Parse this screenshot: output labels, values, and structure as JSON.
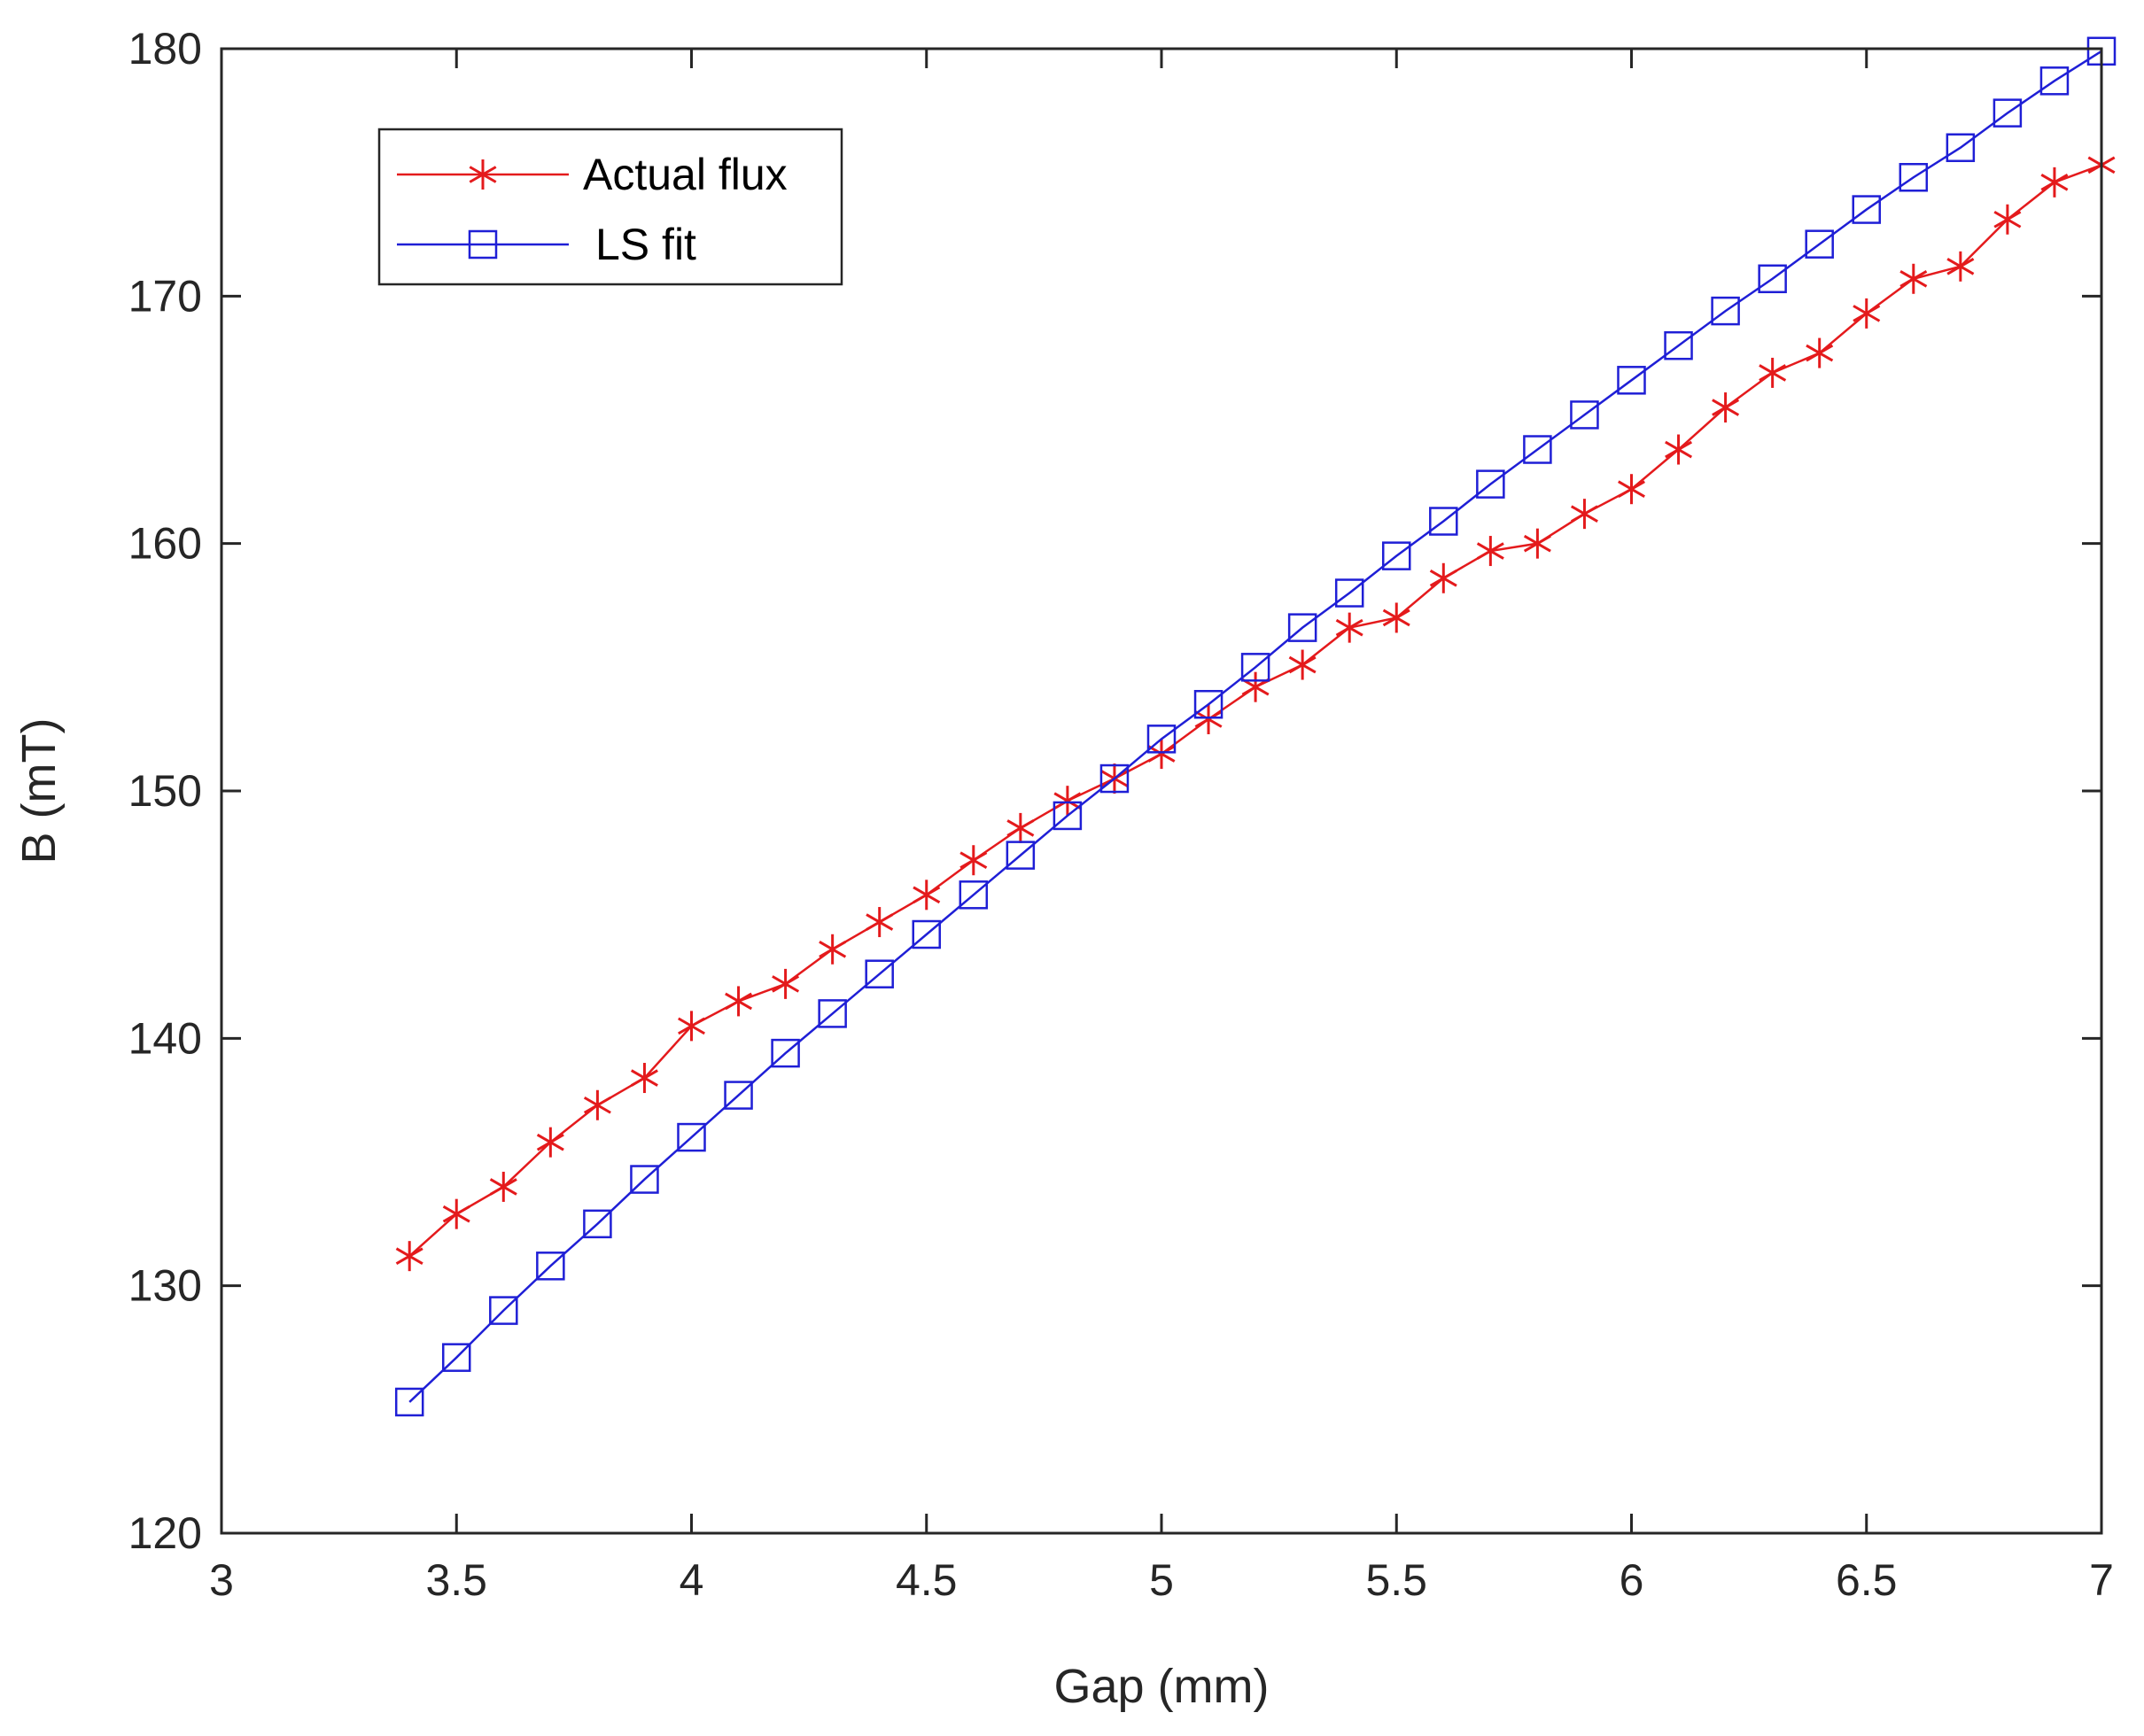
{
  "chart_data": {
    "type": "line",
    "title": "",
    "xlabel": "Gap (mm)",
    "ylabel": "B (mT)",
    "xlim": [
      3,
      7
    ],
    "ylim": [
      120,
      180
    ],
    "xticks": [
      3,
      3.5,
      4,
      4.5,
      5,
      5.5,
      6,
      6.5,
      7
    ],
    "xtick_labels": [
      "3",
      "3.5",
      "4",
      "4.5",
      "5",
      "5.5",
      "6",
      "6.5",
      "7"
    ],
    "yticks": [
      120,
      130,
      140,
      150,
      160,
      170,
      180
    ],
    "ytick_labels": [
      "120",
      "130",
      "140",
      "150",
      "160",
      "170",
      "180"
    ],
    "grid": false,
    "legend_position": "top-left",
    "x": [
      3.4,
      3.5,
      3.6,
      3.7,
      3.8,
      3.9,
      4.0,
      4.1,
      4.2,
      4.3,
      4.4,
      4.5,
      4.6,
      4.7,
      4.8,
      4.9,
      5.0,
      5.1,
      5.2,
      5.3,
      5.4,
      5.5,
      5.6,
      5.7,
      5.8,
      5.9,
      6.0,
      6.1,
      6.2,
      6.3,
      6.4,
      6.5,
      6.6,
      6.7,
      6.8,
      6.9,
      7.0
    ],
    "series": [
      {
        "name": "Actual flux",
        "color": "#e41a1c",
        "marker": "asterisk",
        "values": [
          131.2,
          132.9,
          134.0,
          135.8,
          137.3,
          138.4,
          140.5,
          141.5,
          142.2,
          143.6,
          144.7,
          145.8,
          147.2,
          148.5,
          149.6,
          150.5,
          151.5,
          152.9,
          154.2,
          155.1,
          156.6,
          157.0,
          158.6,
          159.7,
          160.0,
          161.2,
          162.2,
          163.8,
          165.5,
          166.9,
          167.7,
          169.3,
          170.7,
          171.2,
          173.1,
          174.6,
          175.3
        ]
      },
      {
        "name": "LS fit",
        "color": "#1f1fd6",
        "marker": "square",
        "values": [
          125.3,
          127.1,
          129.0,
          130.8,
          132.5,
          134.3,
          136.0,
          137.7,
          139.4,
          141.0,
          142.6,
          144.2,
          145.8,
          147.4,
          149.0,
          150.5,
          152.1,
          153.5,
          155.0,
          156.6,
          158.0,
          159.5,
          160.9,
          162.4,
          163.8,
          165.2,
          166.6,
          168.0,
          169.4,
          170.7,
          172.1,
          173.5,
          174.8,
          176.0,
          177.4,
          178.7,
          179.9
        ]
      }
    ]
  }
}
